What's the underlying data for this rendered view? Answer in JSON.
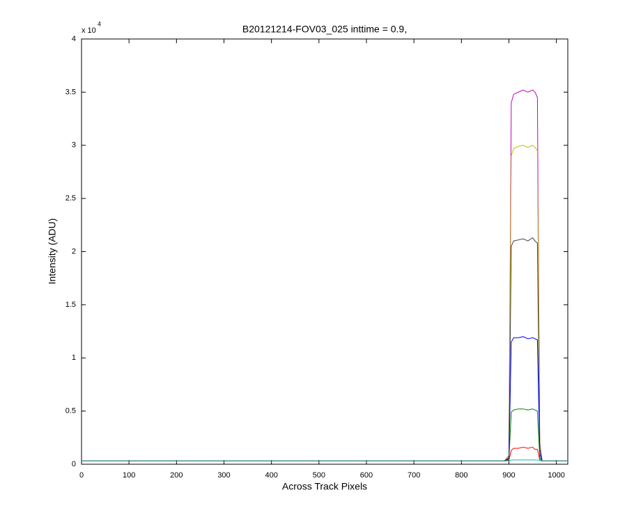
{
  "chart_data": {
    "type": "line",
    "title": "B20121214-FOV03_025 inttime = 0.9,",
    "x_label": "Across Track Pixels",
    "y_label": "Intensity (ADU)",
    "y_exponent_base": "x 10",
    "y_exponent": "4",
    "x": [
      0,
      200,
      400,
      600,
      800,
      890,
      900,
      905,
      910,
      920,
      930,
      940,
      950,
      955,
      960,
      965,
      970,
      1000,
      1024
    ],
    "series": [
      {
        "color": "#bf00bf",
        "values": [
          300,
          300,
          300,
          300,
          300,
          300,
          800,
          34000,
          34800,
          35000,
          35200,
          35000,
          35200,
          35000,
          34500,
          2000,
          300,
          300,
          300
        ]
      },
      {
        "color": "#bfbf00",
        "values": [
          300,
          300,
          300,
          300,
          300,
          300,
          700,
          29000,
          29700,
          29900,
          30000,
          29800,
          30000,
          29800,
          29500,
          1800,
          300,
          300,
          300
        ]
      },
      {
        "color": "#404040",
        "values": [
          300,
          300,
          300,
          300,
          300,
          300,
          600,
          20500,
          21000,
          21100,
          21200,
          21000,
          21300,
          21000,
          20800,
          1500,
          300,
          300,
          300
        ]
      },
      {
        "color": "#0000ff",
        "values": [
          300,
          300,
          300,
          300,
          300,
          300,
          500,
          11500,
          11900,
          11900,
          12000,
          11800,
          11900,
          11800,
          11700,
          1000,
          300,
          300,
          300
        ]
      },
      {
        "color": "#008000",
        "values": [
          300,
          300,
          300,
          300,
          300,
          300,
          400,
          4900,
          5100,
          5200,
          5200,
          5100,
          5200,
          5100,
          5000,
          600,
          300,
          300,
          300
        ]
      },
      {
        "color": "#ff0000",
        "values": [
          300,
          300,
          300,
          300,
          300,
          300,
          350,
          1300,
          1500,
          1500,
          1600,
          1500,
          1600,
          1400,
          1400,
          400,
          300,
          300,
          300
        ]
      },
      {
        "color": "#00bfbf",
        "values": [
          300,
          300,
          300,
          300,
          300,
          300,
          320,
          400,
          400,
          400,
          400,
          400,
          400,
          400,
          400,
          350,
          300,
          300,
          300
        ]
      }
    ],
    "xlim": [
      0,
      1024
    ],
    "xticks": [
      0,
      100,
      200,
      300,
      400,
      500,
      600,
      700,
      800,
      900,
      1000
    ],
    "ylim": [
      0,
      40000
    ],
    "yticks": [
      0,
      {
        "value": 5000,
        "label": "0.5"
      },
      {
        "value": 10000,
        "label": "1"
      },
      {
        "value": 15000,
        "label": "1.5"
      },
      {
        "value": 20000,
        "label": "2"
      },
      {
        "value": 25000,
        "label": "2.5"
      },
      {
        "value": 30000,
        "label": "3"
      },
      {
        "value": 35000,
        "label": "3.5"
      },
      {
        "value": 40000,
        "label": "4"
      }
    ]
  }
}
